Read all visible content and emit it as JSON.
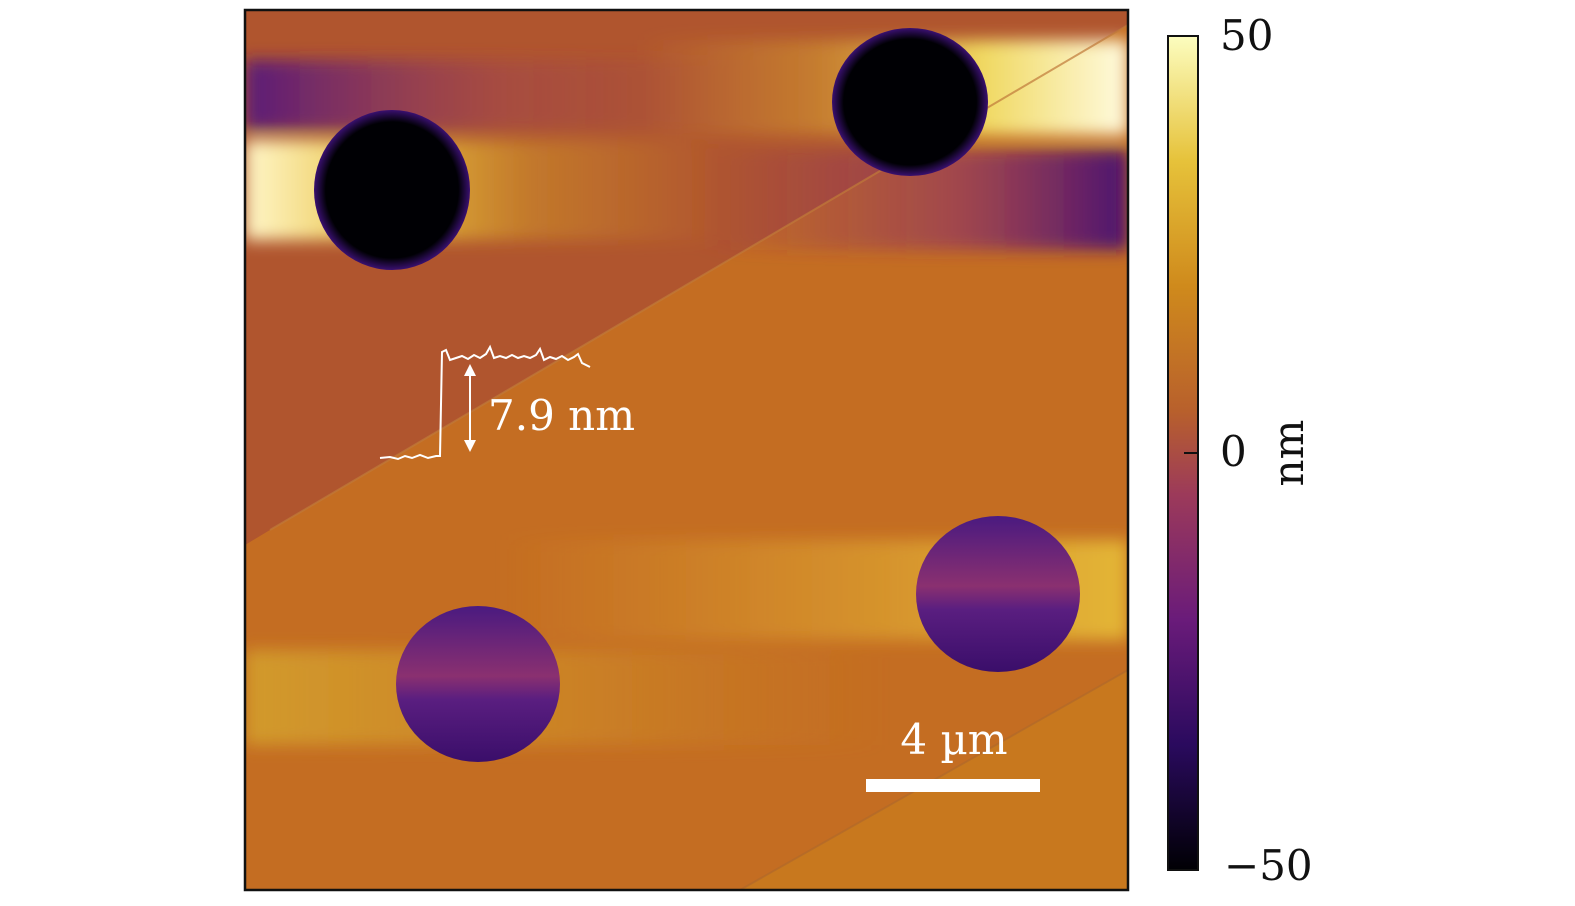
{
  "afm_image": {
    "step_height_label": "7.9 nm",
    "scale_bar_label": "4 µm"
  },
  "colorbar": {
    "max_label": "50",
    "mid_label": "0",
    "min_label": "−50",
    "unit_label": "nm",
    "max_value": 50,
    "min_value": -50,
    "colors": [
      "#000004",
      "#3b0f70",
      "#8c2981",
      "#b05a3a",
      "#c8741e",
      "#e0a820",
      "#f2e880",
      "#fcfdbf"
    ]
  }
}
